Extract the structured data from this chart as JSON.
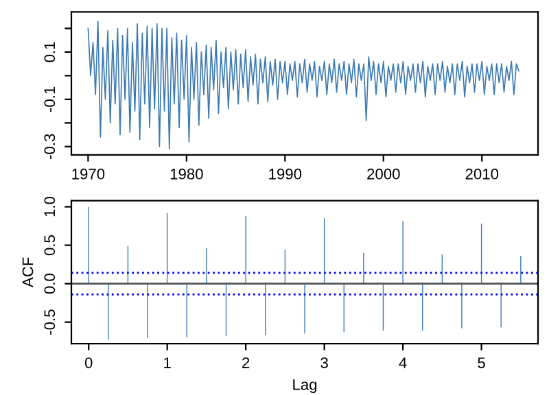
{
  "chart_data": [
    {
      "type": "line",
      "xlim": [
        1968.3,
        2015.7
      ],
      "ylim": [
        -0.335,
        0.27
      ],
      "xticks": [
        1970,
        1980,
        1990,
        2000,
        2010
      ],
      "yticks": [
        {
          "value": -0.3,
          "label": "-0.3"
        },
        {
          "value": -0.2,
          "label": null
        },
        {
          "value": -0.1,
          "label": "-0.1"
        },
        {
          "value": 0,
          "label": null
        },
        {
          "value": 0.1,
          "label": "0.1"
        },
        {
          "value": 0.2,
          "label": null
        }
      ],
      "grid": false,
      "legend": false,
      "line_style": "solid",
      "marker": "none",
      "series": [
        {
          "color": "#3c7ab4",
          "x": [
            1970,
            1970.25,
            1970.5,
            1970.75,
            1971,
            1971.25,
            1971.5,
            1971.75,
            1972,
            1972.25,
            1972.5,
            1972.75,
            1973,
            1973.25,
            1973.5,
            1973.75,
            1974,
            1974.25,
            1974.5,
            1974.75,
            1975,
            1975.25,
            1975.5,
            1975.75,
            1976,
            1976.25,
            1976.5,
            1976.75,
            1977,
            1977.25,
            1977.5,
            1977.75,
            1978,
            1978.25,
            1978.5,
            1978.75,
            1979,
            1979.25,
            1979.5,
            1979.75,
            1980,
            1980.25,
            1980.5,
            1980.75,
            1981,
            1981.25,
            1981.5,
            1981.75,
            1982,
            1982.25,
            1982.5,
            1982.75,
            1983,
            1983.25,
            1983.5,
            1983.75,
            1984,
            1984.25,
            1984.5,
            1984.75,
            1985,
            1985.25,
            1985.5,
            1985.75,
            1986,
            1986.25,
            1986.5,
            1986.75,
            1987,
            1987.25,
            1987.5,
            1987.75,
            1988,
            1988.25,
            1988.5,
            1988.75,
            1989,
            1989.25,
            1989.5,
            1989.75,
            1990,
            1990.25,
            1990.5,
            1990.75,
            1991,
            1991.25,
            1991.5,
            1991.75,
            1992,
            1992.25,
            1992.5,
            1992.75,
            1993,
            1993.25,
            1993.5,
            1993.75,
            1994,
            1994.25,
            1994.5,
            1994.75,
            1995,
            1995.25,
            1995.5,
            1995.75,
            1996,
            1996.25,
            1996.5,
            1996.75,
            1997,
            1997.25,
            1997.5,
            1997.75,
            1998,
            1998.25,
            1998.5,
            1998.75,
            1999,
            1999.25,
            1999.5,
            1999.75,
            2000,
            2000.25,
            2000.5,
            2000.75,
            2001,
            2001.25,
            2001.5,
            2001.75,
            2002,
            2002.25,
            2002.5,
            2002.75,
            2003,
            2003.25,
            2003.5,
            2003.75,
            2004,
            2004.25,
            2004.5,
            2004.75,
            2005,
            2005.25,
            2005.5,
            2005.75,
            2006,
            2006.25,
            2006.5,
            2006.75,
            2007,
            2007.25,
            2007.5,
            2007.75,
            2008,
            2008.25,
            2008.5,
            2008.75,
            2009,
            2009.25,
            2009.5,
            2009.75,
            2010,
            2010.25,
            2010.5,
            2010.75,
            2011,
            2011.25,
            2011.5,
            2011.75,
            2012,
            2012.25,
            2012.5,
            2012.75,
            2013,
            2013.25,
            2013.5,
            2013.75
          ],
          "values": [
            0.2,
            0.0,
            0.14,
            -0.08,
            0.23,
            -0.26,
            0.12,
            -0.1,
            0.19,
            -0.2,
            0.15,
            -0.12,
            0.2,
            -0.25,
            0.17,
            -0.1,
            0.2,
            -0.24,
            0.14,
            -0.15,
            0.22,
            -0.27,
            0.18,
            -0.12,
            0.21,
            -0.22,
            0.2,
            -0.14,
            0.22,
            -0.3,
            0.2,
            -0.15,
            0.2,
            -0.31,
            0.16,
            -0.12,
            0.18,
            -0.22,
            0.15,
            -0.1,
            0.17,
            -0.28,
            0.12,
            -0.1,
            0.14,
            -0.21,
            0.1,
            -0.08,
            0.13,
            -0.18,
            0.12,
            -0.06,
            0.15,
            -0.16,
            0.1,
            -0.05,
            0.12,
            -0.14,
            0.1,
            -0.06,
            0.11,
            -0.12,
            0.09,
            -0.05,
            0.11,
            -0.11,
            0.08,
            -0.04,
            0.09,
            -0.12,
            0.07,
            -0.03,
            0.08,
            -0.11,
            0.06,
            -0.04,
            0.07,
            -0.1,
            0.06,
            -0.03,
            0.06,
            -0.08,
            0.05,
            -0.02,
            0.06,
            -0.09,
            0.05,
            -0.03,
            0.07,
            -0.07,
            0.05,
            -0.02,
            0.06,
            -0.09,
            0.04,
            -0.02,
            0.06,
            -0.08,
            0.05,
            -0.03,
            0.07,
            -0.07,
            0.05,
            -0.02,
            0.06,
            -0.08,
            0.05,
            -0.03,
            0.07,
            -0.09,
            0.05,
            -0.02,
            0.05,
            -0.19,
            0.08,
            -0.02,
            0.06,
            -0.08,
            0.05,
            -0.03,
            0.06,
            -0.09,
            0.04,
            -0.02,
            0.05,
            -0.07,
            0.05,
            -0.03,
            0.06,
            -0.08,
            0.04,
            -0.02,
            0.05,
            -0.07,
            0.05,
            -0.03,
            0.06,
            -0.09,
            0.04,
            -0.02,
            0.05,
            -0.08,
            0.05,
            -0.02,
            0.06,
            -0.07,
            0.04,
            -0.03,
            0.05,
            -0.08,
            0.05,
            -0.02,
            0.06,
            -0.09,
            0.04,
            -0.03,
            0.05,
            -0.07,
            0.05,
            -0.02,
            0.06,
            -0.08,
            0.04,
            -0.02,
            0.05,
            -0.08,
            0.05,
            -0.03,
            0.05,
            -0.07,
            0.04,
            -0.02,
            0.06,
            -0.08,
            0.05,
            0.02
          ]
        }
      ]
    },
    {
      "type": "bar",
      "xlabel": "Lag",
      "ylabel": "ACF",
      "xlim": [
        -0.22,
        5.72
      ],
      "ylim": [
        -0.78,
        1.08
      ],
      "xticks": [
        0,
        1,
        2,
        3,
        4,
        5
      ],
      "yticks": [
        {
          "value": -0.5,
          "label": "-0.5"
        },
        {
          "value": 0,
          "label": "0.0"
        },
        {
          "value": 0.5,
          "label": "0.5"
        },
        {
          "value": 1,
          "label": "1.0"
        }
      ],
      "grid": false,
      "legend": false,
      "x": [
        0,
        0.25,
        0.5,
        0.75,
        1,
        1.25,
        1.5,
        1.75,
        2,
        2.25,
        2.5,
        2.75,
        3,
        3.25,
        3.5,
        3.75,
        4,
        4.25,
        4.5,
        4.75,
        5,
        5.25,
        5.5
      ],
      "values": [
        1.0,
        -0.73,
        0.49,
        -0.71,
        0.92,
        -0.7,
        0.46,
        -0.68,
        0.88,
        -0.67,
        0.44,
        -0.65,
        0.85,
        -0.63,
        0.4,
        -0.61,
        0.81,
        -0.61,
        0.38,
        -0.58,
        0.78,
        -0.57,
        0.36
      ],
      "color": "#3c7ab4",
      "ref_lines": [
        {
          "axis": "y",
          "value": 0,
          "color": "#555555",
          "line_style": "solid"
        },
        {
          "axis": "y",
          "value": 0.14,
          "color": "#0000ff",
          "line_style": "dotted"
        },
        {
          "axis": "y",
          "value": -0.14,
          "color": "#0000ff",
          "line_style": "dotted"
        }
      ]
    }
  ]
}
